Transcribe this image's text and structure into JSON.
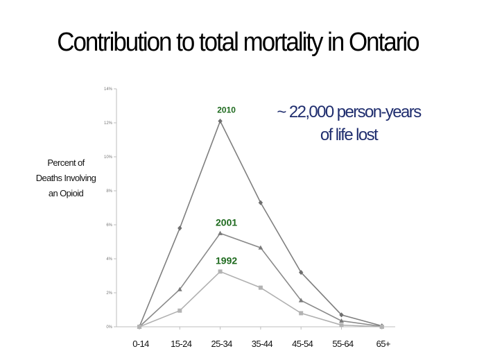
{
  "slide": {
    "title": "Contribution to total mortality in Ontario",
    "annotation": {
      "line1": "~ 22,000 person-years",
      "line2": "of life lost"
    }
  },
  "chart_data": {
    "type": "line",
    "title": "Contribution to total mortality in Ontario",
    "ylabel": [
      "Percent of",
      "Deaths Involving",
      "an Opioid"
    ],
    "xlabel": "",
    "categories": [
      "0-14",
      "15-24",
      "25-34",
      "35-44",
      "45-54",
      "55-64",
      "65+"
    ],
    "ylim": [
      0,
      14
    ],
    "yticks": [
      0,
      2,
      4,
      6,
      8,
      10,
      12,
      14
    ],
    "ytick_labels": [
      "0%",
      "2%",
      "4%",
      "6%",
      "8%",
      "10%",
      "12%",
      "14%"
    ],
    "grid": false,
    "legend": "none",
    "series": [
      {
        "name": "2010",
        "marker": "diamond",
        "color": "#7f7f7f",
        "label_color": "#1e6a1e",
        "values": [
          0.0,
          5.8,
          12.1,
          7.3,
          3.2,
          0.7,
          0.05
        ]
      },
      {
        "name": "2001",
        "marker": "triangle",
        "color": "#8a8a8a",
        "label_color": "#1e6a1e",
        "values": [
          0.0,
          2.2,
          5.5,
          4.65,
          1.55,
          0.35,
          0.02
        ]
      },
      {
        "name": "1992",
        "marker": "square",
        "color": "#b0b0b0",
        "label_color": "#1e6a1e",
        "values": [
          0.0,
          0.95,
          3.25,
          2.3,
          0.8,
          0.1,
          0.0
        ]
      }
    ]
  }
}
